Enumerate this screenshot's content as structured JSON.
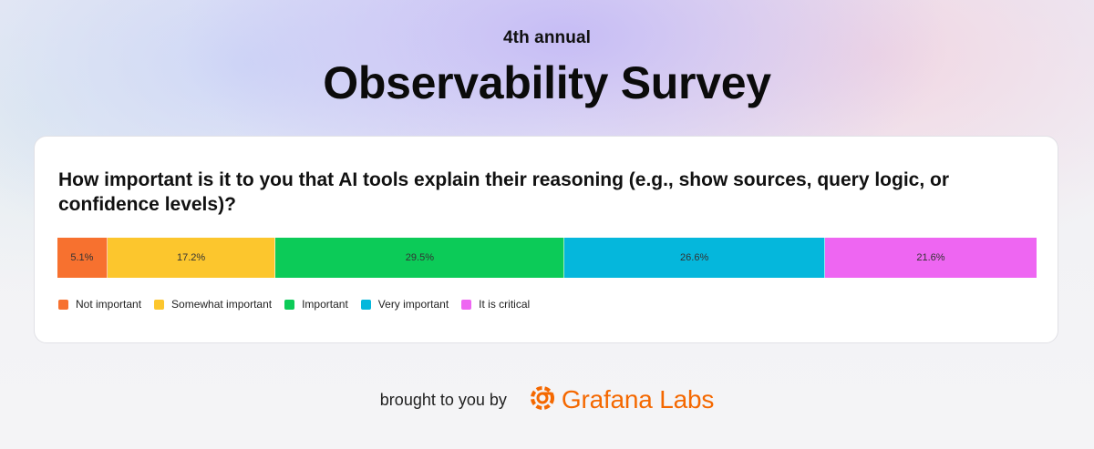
{
  "header": {
    "kicker": "4th annual",
    "title": "Observability Survey"
  },
  "footer": {
    "brought_by": "brought to you by",
    "brand": "Grafana Labs",
    "brand_icon": "grafana-logo-icon"
  },
  "colors": {
    "brand": "#f46800"
  },
  "chart_data": {
    "type": "bar",
    "stacked": true,
    "orientation": "horizontal",
    "title": "How important is it to you that AI tools explain their reasoning (e.g., show sources, query logic, or confidence levels)?",
    "legend_position": "bottom-left",
    "series": [
      {
        "name": "Not important",
        "value": 5.1,
        "label": "5.1%",
        "color": "#f7712f"
      },
      {
        "name": "Somewhat important",
        "value": 17.2,
        "label": "17.2%",
        "color": "#fcc62d"
      },
      {
        "name": "Important",
        "value": 29.5,
        "label": "29.5%",
        "color": "#0ccb58"
      },
      {
        "name": "Very important",
        "value": 26.6,
        "label": "26.6%",
        "color": "#05b7dc"
      },
      {
        "name": "It is critical",
        "value": 21.6,
        "label": "21.6%",
        "color": "#ee66f2"
      }
    ]
  }
}
